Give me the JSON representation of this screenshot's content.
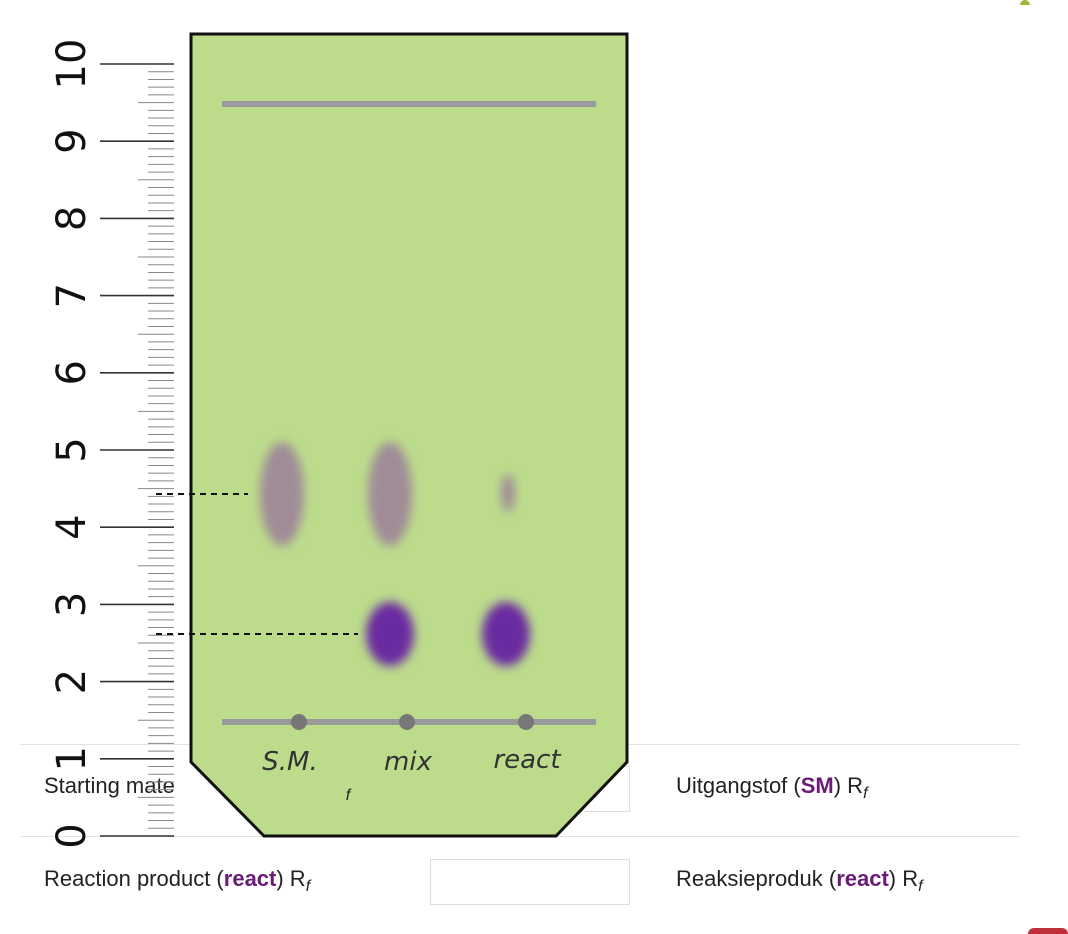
{
  "ruler": {
    "labels": [
      "0",
      "1",
      "2",
      "3",
      "4",
      "5",
      "6",
      "7",
      "8",
      "9",
      "10"
    ]
  },
  "plate": {
    "lane_labels": [
      "S.M.",
      "mix",
      "react"
    ]
  },
  "form": {
    "rows": [
      {
        "english_prefix": "Starting mate",
        "answer_value": "",
        "afrikaans_prefix": "Uitgangstof (",
        "afrikaans_highlight": "SM",
        "afrikaans_suffix": ") R",
        "afrikaans_subscript": "f"
      },
      {
        "english_prefix": "Reaction product (",
        "english_highlight": "react",
        "english_suffix": ") R",
        "english_subscript": "f",
        "answer_value": "",
        "afrikaans_prefix": "Reaksieproduk (",
        "afrikaans_highlight": "react",
        "afrikaans_suffix": ") R",
        "afrikaans_subscript": "f"
      }
    ],
    "occluded_subscript": "f"
  },
  "colors": {
    "plate_green": "#bcdc8c",
    "spot_gray": "#a08b98",
    "spot_purple": "#6a2aa0",
    "highlight_purple": "#6b1a78",
    "accent_green": "#9ab83a",
    "accent_red": "#c0303a"
  }
}
